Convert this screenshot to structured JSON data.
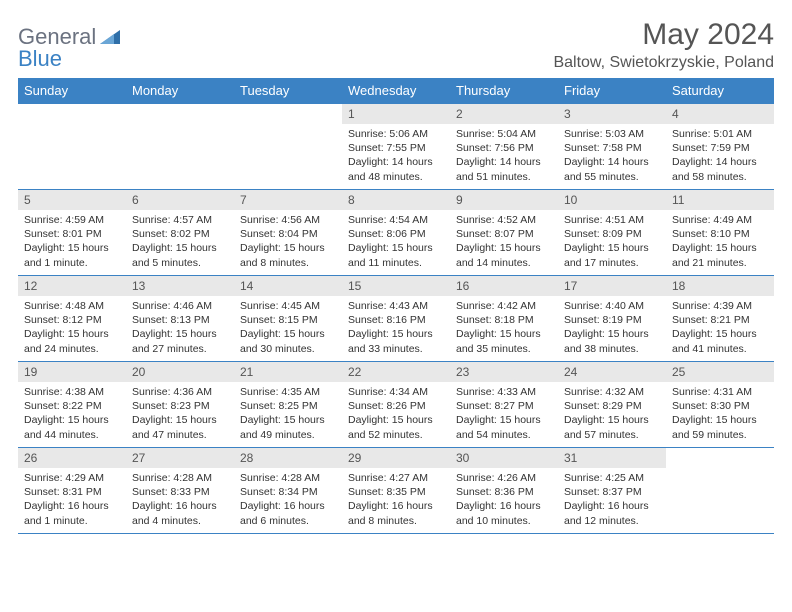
{
  "logo": {
    "general": "General",
    "blue": "Blue"
  },
  "title": "May 2024",
  "location": "Baltow, Swietokrzyskie, Poland",
  "colors": {
    "header_bg": "#3b82c4",
    "header_text": "#ffffff",
    "daynum_bg": "#e8e8e8",
    "border": "#3b82c4",
    "logo_gray": "#6b7280",
    "logo_blue": "#3b82c4"
  },
  "days_of_week": [
    "Sunday",
    "Monday",
    "Tuesday",
    "Wednesday",
    "Thursday",
    "Friday",
    "Saturday"
  ],
  "weeks": [
    [
      null,
      null,
      null,
      {
        "n": "1",
        "sr": "Sunrise: 5:06 AM",
        "ss": "Sunset: 7:55 PM",
        "dl": "Daylight: 14 hours and 48 minutes."
      },
      {
        "n": "2",
        "sr": "Sunrise: 5:04 AM",
        "ss": "Sunset: 7:56 PM",
        "dl": "Daylight: 14 hours and 51 minutes."
      },
      {
        "n": "3",
        "sr": "Sunrise: 5:03 AM",
        "ss": "Sunset: 7:58 PM",
        "dl": "Daylight: 14 hours and 55 minutes."
      },
      {
        "n": "4",
        "sr": "Sunrise: 5:01 AM",
        "ss": "Sunset: 7:59 PM",
        "dl": "Daylight: 14 hours and 58 minutes."
      }
    ],
    [
      {
        "n": "5",
        "sr": "Sunrise: 4:59 AM",
        "ss": "Sunset: 8:01 PM",
        "dl": "Daylight: 15 hours and 1 minute."
      },
      {
        "n": "6",
        "sr": "Sunrise: 4:57 AM",
        "ss": "Sunset: 8:02 PM",
        "dl": "Daylight: 15 hours and 5 minutes."
      },
      {
        "n": "7",
        "sr": "Sunrise: 4:56 AM",
        "ss": "Sunset: 8:04 PM",
        "dl": "Daylight: 15 hours and 8 minutes."
      },
      {
        "n": "8",
        "sr": "Sunrise: 4:54 AM",
        "ss": "Sunset: 8:06 PM",
        "dl": "Daylight: 15 hours and 11 minutes."
      },
      {
        "n": "9",
        "sr": "Sunrise: 4:52 AM",
        "ss": "Sunset: 8:07 PM",
        "dl": "Daylight: 15 hours and 14 minutes."
      },
      {
        "n": "10",
        "sr": "Sunrise: 4:51 AM",
        "ss": "Sunset: 8:09 PM",
        "dl": "Daylight: 15 hours and 17 minutes."
      },
      {
        "n": "11",
        "sr": "Sunrise: 4:49 AM",
        "ss": "Sunset: 8:10 PM",
        "dl": "Daylight: 15 hours and 21 minutes."
      }
    ],
    [
      {
        "n": "12",
        "sr": "Sunrise: 4:48 AM",
        "ss": "Sunset: 8:12 PM",
        "dl": "Daylight: 15 hours and 24 minutes."
      },
      {
        "n": "13",
        "sr": "Sunrise: 4:46 AM",
        "ss": "Sunset: 8:13 PM",
        "dl": "Daylight: 15 hours and 27 minutes."
      },
      {
        "n": "14",
        "sr": "Sunrise: 4:45 AM",
        "ss": "Sunset: 8:15 PM",
        "dl": "Daylight: 15 hours and 30 minutes."
      },
      {
        "n": "15",
        "sr": "Sunrise: 4:43 AM",
        "ss": "Sunset: 8:16 PM",
        "dl": "Daylight: 15 hours and 33 minutes."
      },
      {
        "n": "16",
        "sr": "Sunrise: 4:42 AM",
        "ss": "Sunset: 8:18 PM",
        "dl": "Daylight: 15 hours and 35 minutes."
      },
      {
        "n": "17",
        "sr": "Sunrise: 4:40 AM",
        "ss": "Sunset: 8:19 PM",
        "dl": "Daylight: 15 hours and 38 minutes."
      },
      {
        "n": "18",
        "sr": "Sunrise: 4:39 AM",
        "ss": "Sunset: 8:21 PM",
        "dl": "Daylight: 15 hours and 41 minutes."
      }
    ],
    [
      {
        "n": "19",
        "sr": "Sunrise: 4:38 AM",
        "ss": "Sunset: 8:22 PM",
        "dl": "Daylight: 15 hours and 44 minutes."
      },
      {
        "n": "20",
        "sr": "Sunrise: 4:36 AM",
        "ss": "Sunset: 8:23 PM",
        "dl": "Daylight: 15 hours and 47 minutes."
      },
      {
        "n": "21",
        "sr": "Sunrise: 4:35 AM",
        "ss": "Sunset: 8:25 PM",
        "dl": "Daylight: 15 hours and 49 minutes."
      },
      {
        "n": "22",
        "sr": "Sunrise: 4:34 AM",
        "ss": "Sunset: 8:26 PM",
        "dl": "Daylight: 15 hours and 52 minutes."
      },
      {
        "n": "23",
        "sr": "Sunrise: 4:33 AM",
        "ss": "Sunset: 8:27 PM",
        "dl": "Daylight: 15 hours and 54 minutes."
      },
      {
        "n": "24",
        "sr": "Sunrise: 4:32 AM",
        "ss": "Sunset: 8:29 PM",
        "dl": "Daylight: 15 hours and 57 minutes."
      },
      {
        "n": "25",
        "sr": "Sunrise: 4:31 AM",
        "ss": "Sunset: 8:30 PM",
        "dl": "Daylight: 15 hours and 59 minutes."
      }
    ],
    [
      {
        "n": "26",
        "sr": "Sunrise: 4:29 AM",
        "ss": "Sunset: 8:31 PM",
        "dl": "Daylight: 16 hours and 1 minute."
      },
      {
        "n": "27",
        "sr": "Sunrise: 4:28 AM",
        "ss": "Sunset: 8:33 PM",
        "dl": "Daylight: 16 hours and 4 minutes."
      },
      {
        "n": "28",
        "sr": "Sunrise: 4:28 AM",
        "ss": "Sunset: 8:34 PM",
        "dl": "Daylight: 16 hours and 6 minutes."
      },
      {
        "n": "29",
        "sr": "Sunrise: 4:27 AM",
        "ss": "Sunset: 8:35 PM",
        "dl": "Daylight: 16 hours and 8 minutes."
      },
      {
        "n": "30",
        "sr": "Sunrise: 4:26 AM",
        "ss": "Sunset: 8:36 PM",
        "dl": "Daylight: 16 hours and 10 minutes."
      },
      {
        "n": "31",
        "sr": "Sunrise: 4:25 AM",
        "ss": "Sunset: 8:37 PM",
        "dl": "Daylight: 16 hours and 12 minutes."
      },
      null
    ]
  ]
}
